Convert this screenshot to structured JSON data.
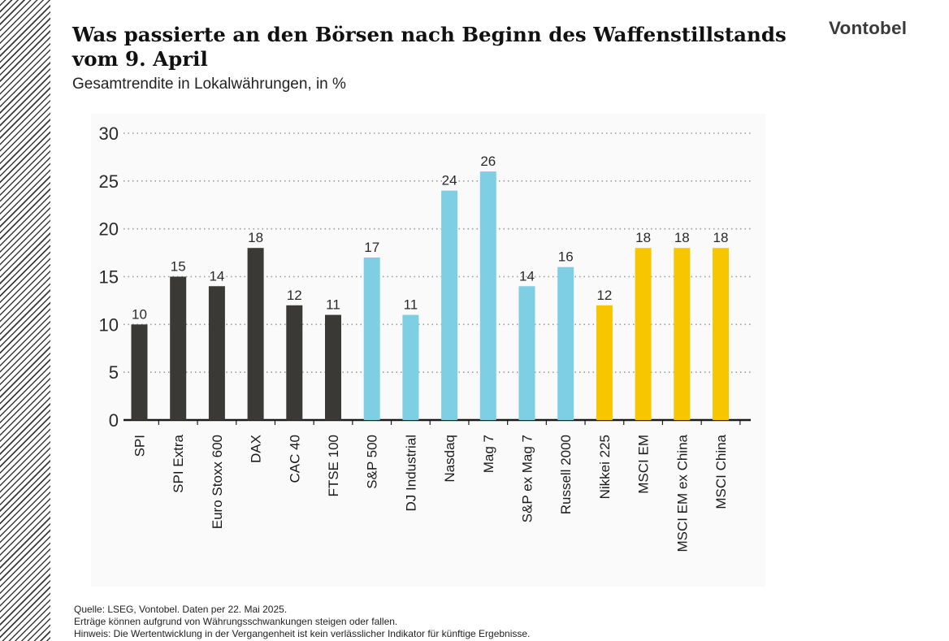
{
  "header": {
    "title_line1": "Was passierte an den Börsen nach Beginn des Waffenstillstands",
    "title_line2": "vom 9. April",
    "subtitle": "Gesamtrendite in Lokalwährungen, in %",
    "logo": "Vontobel"
  },
  "footer": {
    "source": "Quelle: LSEG, Vontobel. Daten per 22. Mai 2025.",
    "note1": "Erträge können aufgrund von Währungsschwankungen steigen oder fallen.",
    "note2": "Hinweis: Die Wertentwicklung in der Vergangenheit ist kein verlässlicher Indikator für künftige Ergebnisse."
  },
  "colors": {
    "europe": "#3b3935",
    "us": "#7fcfe4",
    "asia_em": "#f7c600",
    "grid": "#9a9a9a",
    "axis": "#1a1a1a"
  },
  "chart_data": {
    "type": "bar",
    "categories": [
      "SPI",
      "SPI Extra",
      "Euro Stoxx 600",
      "DAX",
      "CAC 40",
      "FTSE 100",
      "S&P 500",
      "DJ Industrial",
      "Nasdaq",
      "Mag 7",
      "S&P ex Mag 7",
      "Russell 2000",
      "Nikkei 225",
      "MSCI EM",
      "MSCI EM ex China",
      "MSCI China"
    ],
    "values": [
      10,
      15,
      14,
      18,
      12,
      11,
      17,
      11,
      24,
      26,
      14,
      16,
      12,
      18,
      18,
      18
    ],
    "value_labels": [
      "10",
      "15",
      "14",
      "18",
      "12",
      "11",
      "17",
      "11",
      "24",
      "26",
      "14",
      "16",
      "12",
      "18",
      "18",
      "18"
    ],
    "groups": [
      "europe",
      "europe",
      "europe",
      "europe",
      "europe",
      "europe",
      "us",
      "us",
      "us",
      "us",
      "us",
      "us",
      "asia_em",
      "asia_em",
      "asia_em",
      "asia_em"
    ],
    "ylim": [
      0,
      30
    ],
    "yticks": [
      0,
      5,
      10,
      15,
      20,
      25,
      30
    ],
    "ytick_labels": [
      "0",
      "5",
      "10",
      "15",
      "20",
      "25",
      "30"
    ],
    "grid": true,
    "grid_style": "dotted",
    "legend": "none"
  }
}
